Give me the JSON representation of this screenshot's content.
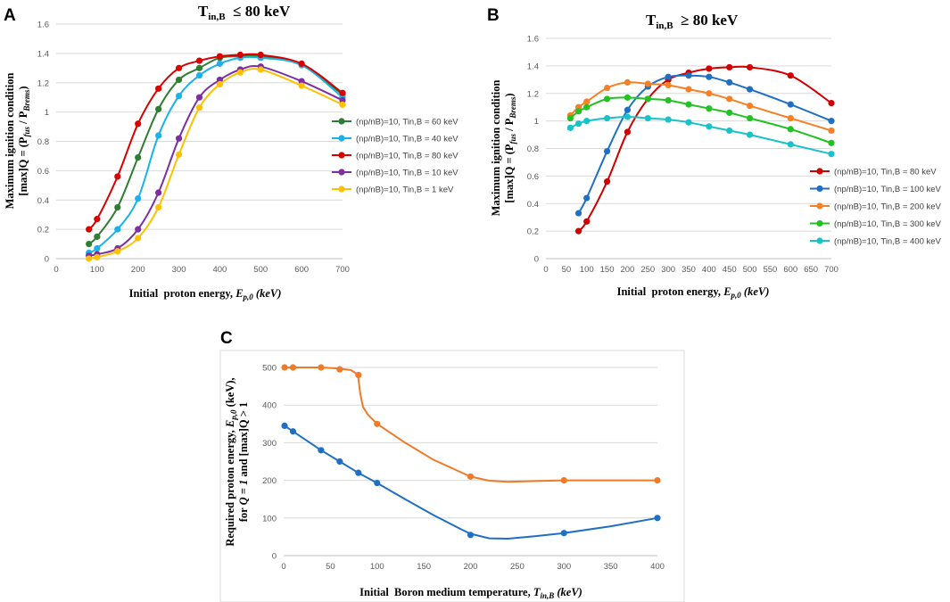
{
  "chart_data": [
    {
      "panel_label": "A",
      "type": "line",
      "title_main": "T",
      "title_sub": "in,B",
      "title_rest": "  ≤ 80 keV",
      "xlabel_prefix": "Initial  proton energy, ",
      "xlabel_var": "E",
      "xlabel_sub": "p,0",
      "xlabel_unit": " (keV)",
      "ylabel_line1": "Maximum ignition condition",
      "ylabel_line2_prefix": "[max]Q = (P",
      "ylabel_line2_sub1": "fus",
      "ylabel_line2_mid": " / P",
      "ylabel_line2_sub2": "Brems",
      "ylabel_line2_suffix": ")",
      "xlim": [
        0,
        700
      ],
      "ylim": [
        0,
        1.6
      ],
      "xticks": [
        0,
        100,
        200,
        300,
        400,
        500,
        600,
        700
      ],
      "yticks": [
        0,
        0.2,
        0.4,
        0.6,
        0.8,
        1,
        1.2,
        1.4,
        1.6
      ],
      "ytick_labels": [
        "0",
        "0.2",
        "0.4",
        "0.6",
        "0.8",
        "1",
        "1.2",
        "1.4",
        "1.6"
      ],
      "grid": "horizontal",
      "legend_position": "right",
      "series": [
        {
          "name": "(np/nB)=10, Tin,B = 60 keV",
          "color": "#2e7d32",
          "x": [
            80,
            100,
            150,
            200,
            250,
            300,
            350,
            400,
            450,
            500,
            600,
            700
          ],
          "y": [
            0.1,
            0.15,
            0.35,
            0.69,
            1.02,
            1.22,
            1.3,
            1.37,
            1.38,
            1.38,
            1.32,
            1.12
          ]
        },
        {
          "name": "(np/nB)=10, Tin,B = 40 keV",
          "color": "#1ab2ea",
          "x": [
            80,
            100,
            150,
            200,
            250,
            300,
            350,
            400,
            450,
            500,
            600,
            700
          ],
          "y": [
            0.04,
            0.07,
            0.2,
            0.41,
            0.84,
            1.11,
            1.25,
            1.33,
            1.37,
            1.37,
            1.32,
            1.1
          ]
        },
        {
          "name": "(np/nB)=10, Tin,B = 80 keV",
          "color": "#d90000",
          "x": [
            80,
            100,
            150,
            200,
            250,
            300,
            350,
            400,
            450,
            500,
            600,
            700
          ],
          "y": [
            0.2,
            0.27,
            0.56,
            0.92,
            1.16,
            1.3,
            1.35,
            1.38,
            1.39,
            1.39,
            1.33,
            1.13
          ]
        },
        {
          "name": "(np/nB)=10, Tin,B = 10 keV",
          "color": "#7b2fa0",
          "x": [
            80,
            100,
            150,
            200,
            250,
            300,
            350,
            400,
            450,
            500,
            600,
            700
          ],
          "y": [
            0.02,
            0.03,
            0.07,
            0.2,
            0.45,
            0.82,
            1.1,
            1.22,
            1.29,
            1.31,
            1.21,
            1.08
          ]
        },
        {
          "name": "(np/nB)=10, Tin,B = 1 keV",
          "color": "#ffc000",
          "x": [
            80,
            100,
            150,
            200,
            250,
            300,
            350,
            400,
            450,
            500,
            600,
            700
          ],
          "y": [
            0.0,
            0.01,
            0.05,
            0.14,
            0.35,
            0.71,
            1.03,
            1.19,
            1.27,
            1.29,
            1.18,
            1.05
          ]
        }
      ]
    },
    {
      "panel_label": "B",
      "type": "line",
      "title_main": "T",
      "title_sub": "in,B",
      "title_rest": "  ≥ 80 keV",
      "xlabel_prefix": "Initial  proton energy, ",
      "xlabel_var": "E",
      "xlabel_sub": "p,0",
      "xlabel_unit": " (keV)",
      "ylabel_line1": "Maximum ignition condition",
      "ylabel_line2_prefix": "[max]Q = (P",
      "ylabel_line2_sub1": "fus",
      "ylabel_line2_mid": " / P",
      "ylabel_line2_sub2": "Brems",
      "ylabel_line2_suffix": ")",
      "xlim": [
        0,
        700
      ],
      "ylim": [
        0,
        1.6
      ],
      "xticks": [
        0,
        50,
        100,
        150,
        200,
        250,
        300,
        350,
        400,
        450,
        500,
        550,
        600,
        650,
        700
      ],
      "yticks": [
        0,
        0.2,
        0.4,
        0.6,
        0.8,
        1,
        1.2,
        1.4,
        1.6
      ],
      "ytick_labels": [
        "0",
        "0.2",
        "0.4",
        "0.6",
        "0.8",
        "1",
        "1.2",
        "1.4",
        "1.6"
      ],
      "grid": "horizontal",
      "legend_position": "right",
      "series": [
        {
          "name": "(np/nB)=10, Tin,B = 80 keV",
          "color": "#d00000",
          "x": [
            80,
            100,
            150,
            200,
            250,
            300,
            350,
            400,
            450,
            500,
            600,
            700
          ],
          "y": [
            0.2,
            0.27,
            0.56,
            0.92,
            1.16,
            1.3,
            1.35,
            1.38,
            1.39,
            1.39,
            1.33,
            1.13
          ]
        },
        {
          "name": "(np/nB)=10, Tin,B = 100 keV",
          "color": "#1f6fc5",
          "x": [
            80,
            100,
            150,
            200,
            250,
            300,
            350,
            400,
            450,
            500,
            600,
            700
          ],
          "y": [
            0.33,
            0.44,
            0.78,
            1.08,
            1.25,
            1.32,
            1.33,
            1.32,
            1.28,
            1.23,
            1.12,
            1.0
          ]
        },
        {
          "name": "(np/nB)=10, Tin,B = 200 keV",
          "color": "#f58025",
          "x": [
            60,
            80,
            100,
            150,
            200,
            250,
            300,
            350,
            400,
            450,
            500,
            600,
            700
          ],
          "y": [
            1.04,
            1.1,
            1.14,
            1.24,
            1.28,
            1.27,
            1.26,
            1.23,
            1.2,
            1.16,
            1.11,
            1.02,
            0.93
          ]
        },
        {
          "name": "(np/nB)=10, Tin,B = 300 keV",
          "color": "#22c222",
          "x": [
            60,
            80,
            100,
            150,
            200,
            250,
            300,
            350,
            400,
            450,
            500,
            600,
            700
          ],
          "y": [
            1.02,
            1.07,
            1.1,
            1.16,
            1.17,
            1.16,
            1.15,
            1.12,
            1.09,
            1.06,
            1.02,
            0.94,
            0.84
          ]
        },
        {
          "name": "(np/nB)=10, Tin,B = 400 keV",
          "color": "#17c3c8",
          "x": [
            60,
            80,
            100,
            150,
            200,
            250,
            300,
            350,
            400,
            450,
            500,
            600,
            700
          ],
          "y": [
            0.95,
            0.98,
            1.0,
            1.02,
            1.03,
            1.02,
            1.01,
            0.99,
            0.96,
            0.93,
            0.9,
            0.83,
            0.76
          ]
        }
      ]
    },
    {
      "panel_label": "C",
      "type": "line",
      "xlabel_prefix": "Initial  Boron medium temperature, ",
      "xlabel_var": "T",
      "xlabel_sub": "in,B",
      "xlabel_unit": " (keV)",
      "ylabel_line1_prefix": "Required proton energy, ",
      "ylabel_line1_var": "E",
      "ylabel_line1_sub": "p,0",
      "ylabel_line1_unit": " (keV),",
      "ylabel_line2_prefix": "for ",
      "ylabel_line2_italic": "Q = 1",
      "ylabel_line2_suffix": " and [max]Q > 1",
      "xlim": [
        0,
        400
      ],
      "ylim": [
        0,
        500
      ],
      "xticks": [
        0,
        50,
        100,
        150,
        200,
        250,
        300,
        350,
        400
      ],
      "yticks": [
        0,
        100,
        200,
        300,
        400,
        500
      ],
      "ytick_labels": [
        "0",
        "100",
        "200",
        "300",
        "400",
        "500"
      ],
      "grid": "horizontal",
      "series": [
        {
          "name": "[max]Q > 1",
          "color": "#f07a28",
          "x": [
            1,
            10,
            40,
            60,
            80,
            100,
            200,
            300,
            400
          ],
          "y": [
            500,
            500,
            500,
            495,
            480,
            350,
            210,
            200,
            200
          ],
          "curve": [
            [
              1,
              500
            ],
            [
              10,
              500
            ],
            [
              40,
              500
            ],
            [
              60,
              497
            ],
            [
              72,
              493
            ],
            [
              79,
              482
            ],
            [
              80,
              470
            ],
            [
              82,
              430
            ],
            [
              85,
              395
            ],
            [
              90,
              375
            ],
            [
              100,
              350
            ],
            [
              130,
              300
            ],
            [
              160,
              255
            ],
            [
              200,
              210
            ],
            [
              220,
              199
            ],
            [
              240,
              196
            ],
            [
              270,
              198
            ],
            [
              300,
              200
            ],
            [
              350,
              200
            ],
            [
              400,
              200
            ]
          ]
        },
        {
          "name": "Q = 1",
          "color": "#1f6fc5",
          "x": [
            1,
            10,
            40,
            60,
            80,
            100,
            200,
            300,
            400
          ],
          "y": [
            345,
            330,
            280,
            250,
            220,
            193,
            55,
            60,
            100
          ],
          "curve": [
            [
              1,
              345
            ],
            [
              10,
              330
            ],
            [
              40,
              280
            ],
            [
              60,
              250
            ],
            [
              80,
              220
            ],
            [
              100,
              193
            ],
            [
              130,
              150
            ],
            [
              160,
              108
            ],
            [
              190,
              70
            ],
            [
              200,
              58
            ],
            [
              220,
              46
            ],
            [
              240,
              45
            ],
            [
              270,
              52
            ],
            [
              300,
              60
            ],
            [
              350,
              78
            ],
            [
              400,
              100
            ]
          ]
        }
      ]
    }
  ]
}
